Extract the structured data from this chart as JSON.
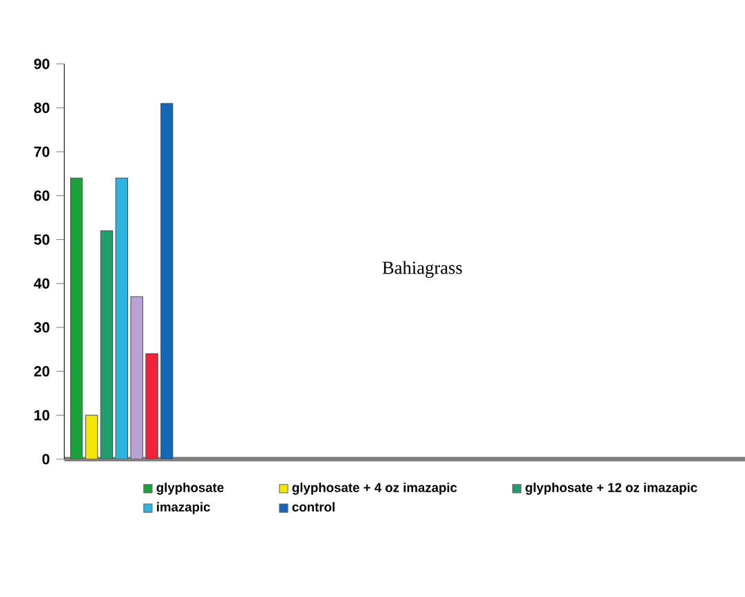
{
  "chart_data": {
    "type": "bar",
    "title": "Bahiagrass",
    "categories": [
      null
    ],
    "series": [
      {
        "name": "glyphosate",
        "color": "#1aa33a",
        "values": [
          64
        ]
      },
      {
        "name": "glyphosate + 4 oz imazapic",
        "color": "#f2e600",
        "values": [
          10
        ]
      },
      {
        "name": "glyphosate + 12 oz imazapic",
        "color": "#1f9e6e",
        "values": [
          52
        ]
      },
      {
        "name": "imazapic",
        "color": "#2bb5e0",
        "values": [
          64
        ]
      },
      {
        "color": "#b9a3d6",
        "values": [
          37
        ]
      },
      {
        "color": "#f0233a",
        "values": [
          24
        ]
      },
      {
        "name": "control",
        "color": "#1466b8",
        "values": [
          81
        ]
      }
    ],
    "ylim": [
      0,
      90
    ],
    "yticks": [
      0,
      10,
      20,
      30,
      40,
      50,
      60,
      70,
      80,
      90
    ],
    "tick_labels": "y",
    "legend": "bottom"
  }
}
